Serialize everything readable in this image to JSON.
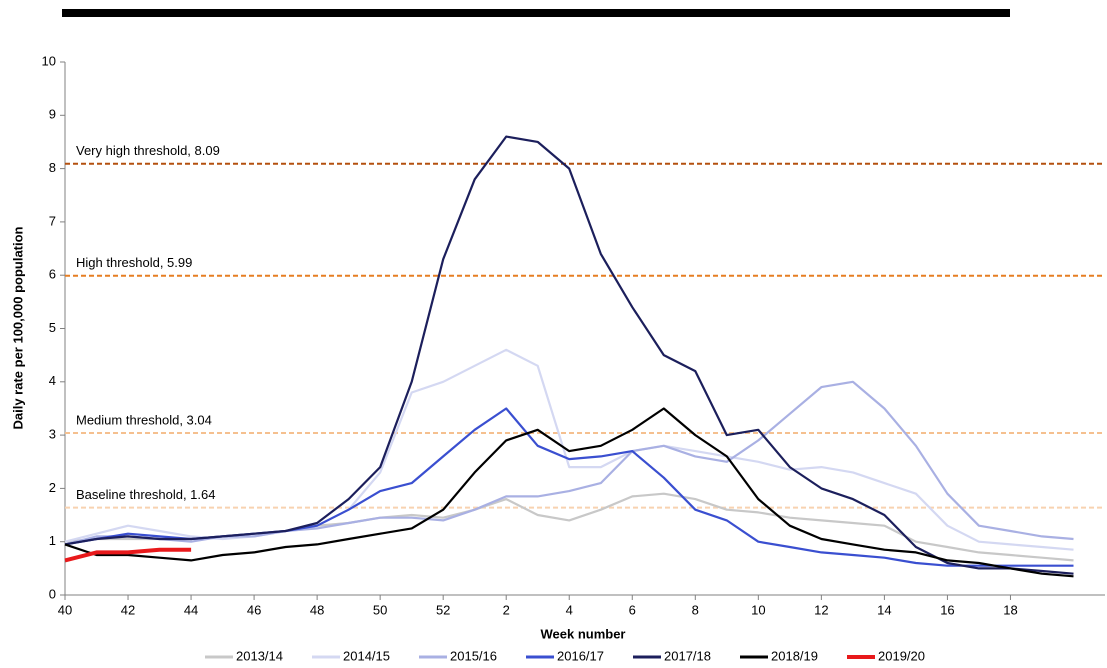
{
  "chart_data": {
    "type": "line",
    "x_label": "Week number",
    "y_label": "Daily rate per 100,000 population",
    "x": [
      0,
      1,
      2,
      3,
      4,
      5,
      6,
      7,
      8,
      9,
      10,
      11,
      12,
      13,
      14,
      15,
      16,
      17,
      18,
      19,
      20,
      21,
      22,
      23,
      24,
      25,
      26,
      27,
      28,
      29,
      30,
      31,
      32
    ],
    "xlim": [
      0,
      33
    ],
    "xticks": [
      {
        "value": 0,
        "label": "40"
      },
      {
        "value": 2,
        "label": "42"
      },
      {
        "value": 4,
        "label": "44"
      },
      {
        "value": 6,
        "label": "46"
      },
      {
        "value": 8,
        "label": "48"
      },
      {
        "value": 10,
        "label": "50"
      },
      {
        "value": 12,
        "label": "52"
      },
      {
        "value": 14,
        "label": "2"
      },
      {
        "value": 16,
        "label": "4"
      },
      {
        "value": 18,
        "label": "6"
      },
      {
        "value": 20,
        "label": "8"
      },
      {
        "value": 22,
        "label": "10"
      },
      {
        "value": 24,
        "label": "12"
      },
      {
        "value": 26,
        "label": "14"
      },
      {
        "value": 28,
        "label": "16"
      },
      {
        "value": 30,
        "label": "18"
      }
    ],
    "ylim": [
      0,
      10
    ],
    "yticks": [
      0,
      1,
      2,
      3,
      4,
      5,
      6,
      7,
      8,
      9,
      10
    ],
    "thresholds": [
      {
        "label": "Very high threshold, 8.09",
        "value": 8.09,
        "color": "#b4500f"
      },
      {
        "label": "High threshold, 5.99",
        "value": 5.99,
        "color": "#e67e22"
      },
      {
        "label": "Medium threshold, 3.04",
        "value": 3.04,
        "color": "#f5c08f"
      },
      {
        "label": "Baseline threshold, 1.64",
        "value": 1.64,
        "color": "#f8d2b0"
      }
    ],
    "series": [
      {
        "name": "2013/14",
        "color": "#c8c8c8",
        "values": [
          1.0,
          1.05,
          1.05,
          1.05,
          1.05,
          1.1,
          1.15,
          1.2,
          1.3,
          1.35,
          1.45,
          1.5,
          1.45,
          1.6,
          1.8,
          1.5,
          1.4,
          1.6,
          1.85,
          1.9,
          1.8,
          1.6,
          1.55,
          1.45,
          1.4,
          1.35,
          1.3,
          1.0,
          0.9,
          0.8,
          0.75,
          0.7,
          0.65
        ]
      },
      {
        "name": "2014/15",
        "color": "#d4d8f2",
        "values": [
          1.0,
          1.15,
          1.3,
          1.2,
          1.1,
          1.05,
          1.1,
          1.2,
          1.3,
          1.6,
          2.3,
          3.8,
          4.0,
          4.3,
          4.6,
          4.3,
          2.4,
          2.4,
          2.7,
          2.8,
          2.7,
          2.6,
          2.5,
          2.35,
          2.4,
          2.3,
          2.1,
          1.9,
          1.3,
          1.0,
          0.95,
          0.9,
          0.85
        ]
      },
      {
        "name": "2015/16",
        "color": "#a9b0e3",
        "values": [
          0.95,
          1.1,
          1.1,
          1.05,
          1.0,
          1.1,
          1.1,
          1.2,
          1.25,
          1.35,
          1.45,
          1.45,
          1.4,
          1.6,
          1.85,
          1.85,
          1.95,
          2.1,
          2.7,
          2.8,
          2.6,
          2.5,
          2.9,
          3.4,
          3.9,
          4.0,
          3.5,
          2.8,
          1.9,
          1.3,
          1.2,
          1.1,
          1.05
        ]
      },
      {
        "name": "2016/17",
        "color": "#3a4fd0",
        "values": [
          0.95,
          1.05,
          1.15,
          1.1,
          1.05,
          1.1,
          1.15,
          1.2,
          1.3,
          1.6,
          1.95,
          2.1,
          2.6,
          3.1,
          3.5,
          2.8,
          2.55,
          2.6,
          2.7,
          2.2,
          1.6,
          1.4,
          1.0,
          0.9,
          0.8,
          0.75,
          0.7,
          0.6,
          0.55,
          0.55,
          0.55,
          0.55,
          0.55
        ]
      },
      {
        "name": "2017/18",
        "color": "#1c1f5c",
        "values": [
          0.95,
          1.05,
          1.1,
          1.05,
          1.05,
          1.1,
          1.15,
          1.2,
          1.35,
          1.8,
          2.4,
          4.0,
          6.3,
          7.8,
          8.6,
          8.5,
          8.0,
          6.4,
          5.4,
          4.5,
          4.2,
          3.0,
          3.1,
          2.4,
          2.0,
          1.8,
          1.5,
          0.9,
          0.6,
          0.5,
          0.5,
          0.45,
          0.4
        ]
      },
      {
        "name": "2018/19",
        "color": "#000000",
        "values": [
          0.95,
          0.75,
          0.75,
          0.7,
          0.65,
          0.75,
          0.8,
          0.9,
          0.95,
          1.05,
          1.15,
          1.25,
          1.6,
          2.3,
          2.9,
          3.1,
          2.7,
          2.8,
          3.1,
          3.5,
          3.0,
          2.6,
          1.8,
          1.3,
          1.05,
          0.95,
          0.85,
          0.8,
          0.65,
          0.6,
          0.5,
          0.4,
          0.35
        ]
      },
      {
        "name": "2019/20",
        "color": "#e8191b",
        "width": 4,
        "values": [
          0.65,
          0.8,
          0.8,
          0.85,
          0.85,
          null,
          null,
          null,
          null,
          null,
          null,
          null,
          null,
          null,
          null,
          null,
          null,
          null,
          null,
          null,
          null,
          null,
          null,
          null,
          null,
          null,
          null,
          null,
          null,
          null,
          null,
          null,
          null
        ]
      }
    ]
  }
}
